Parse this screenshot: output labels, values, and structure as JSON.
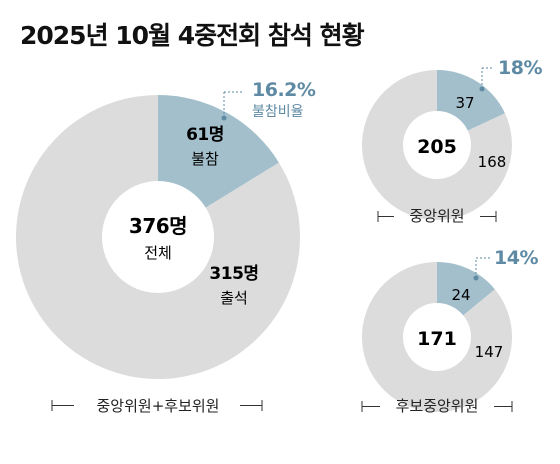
{
  "title": "2025년 10월 4중전회 참석 현황",
  "colors": {
    "attend": "#dcdcdc",
    "absent": "#a3bfcc",
    "accent": "#5e8aa3",
    "text": "#1a1a1a"
  },
  "chart_data": [
    {
      "type": "pie",
      "caption": "중앙위원+후보위원",
      "center_value": "376명",
      "center_label": "전체",
      "slices": [
        {
          "label": "불참",
          "value": 61,
          "value_text": "61명"
        },
        {
          "label": "출석",
          "value": 315,
          "value_text": "315명"
        }
      ],
      "annotation": {
        "value": "16.2%",
        "label": "불참비율"
      }
    },
    {
      "type": "pie",
      "caption": "중앙위원",
      "center_value": "205",
      "slices": [
        {
          "value": 37,
          "value_text": "37"
        },
        {
          "value": 168,
          "value_text": "168"
        }
      ],
      "annotation": {
        "value": "18%"
      }
    },
    {
      "type": "pie",
      "caption": "후보중앙위원",
      "center_value": "171",
      "slices": [
        {
          "value": 24,
          "value_text": "24"
        },
        {
          "value": 147,
          "value_text": "147"
        }
      ],
      "annotation": {
        "value": "14%"
      }
    }
  ]
}
